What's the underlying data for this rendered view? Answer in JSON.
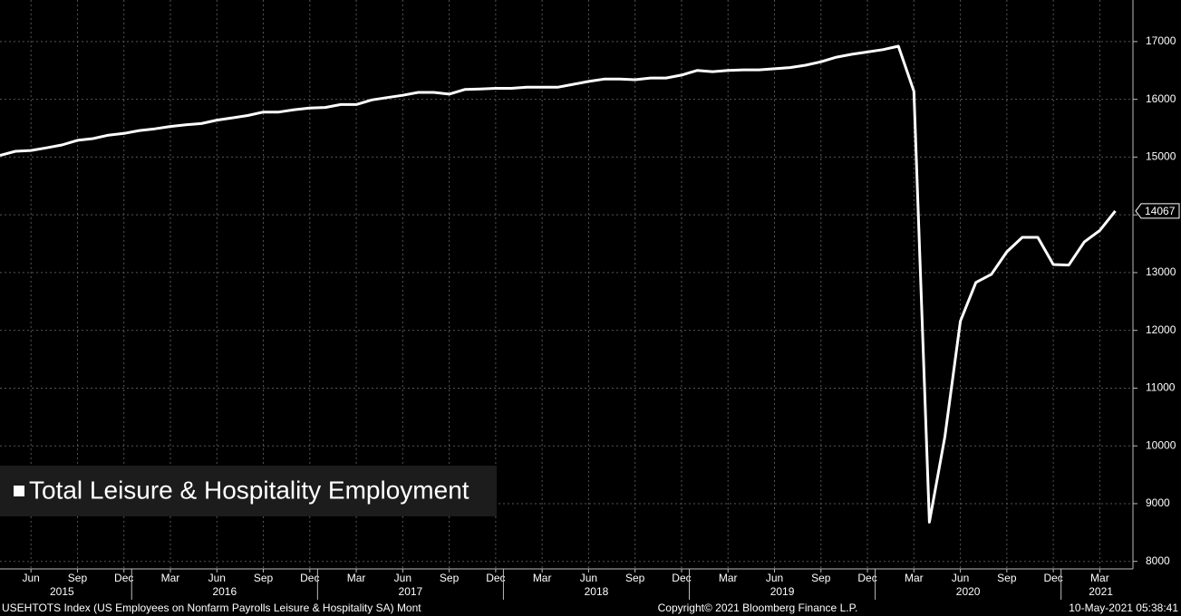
{
  "chart_data": {
    "type": "line",
    "legend": "bottom-left",
    "grid": true,
    "x": [
      "2015-04",
      "2015-05",
      "2015-06",
      "2015-07",
      "2015-08",
      "2015-09",
      "2015-10",
      "2015-11",
      "2015-12",
      "2016-01",
      "2016-02",
      "2016-03",
      "2016-04",
      "2016-05",
      "2016-06",
      "2016-07",
      "2016-08",
      "2016-09",
      "2016-10",
      "2016-11",
      "2016-12",
      "2017-01",
      "2017-02",
      "2017-03",
      "2017-04",
      "2017-05",
      "2017-06",
      "2017-07",
      "2017-08",
      "2017-09",
      "2017-10",
      "2017-11",
      "2017-12",
      "2018-01",
      "2018-02",
      "2018-03",
      "2018-04",
      "2018-05",
      "2018-06",
      "2018-07",
      "2018-08",
      "2018-09",
      "2018-10",
      "2018-11",
      "2018-12",
      "2019-01",
      "2019-02",
      "2019-03",
      "2019-04",
      "2019-05",
      "2019-06",
      "2019-07",
      "2019-08",
      "2019-09",
      "2019-10",
      "2019-11",
      "2019-12",
      "2020-01",
      "2020-02",
      "2020-03",
      "2020-04",
      "2020-05",
      "2020-06",
      "2020-07",
      "2020-08",
      "2020-09",
      "2020-10",
      "2020-11",
      "2020-12",
      "2021-01",
      "2021-02",
      "2021-03",
      "2021-04"
    ],
    "series": [
      {
        "name": "Total Leisure & Hospitality Employment",
        "color": "#ffffff",
        "values": [
          15030,
          15100,
          15115,
          15160,
          15210,
          15290,
          15320,
          15380,
          15410,
          15460,
          15490,
          15530,
          15560,
          15580,
          15640,
          15680,
          15720,
          15780,
          15780,
          15820,
          15850,
          15860,
          15910,
          15910,
          15990,
          16030,
          16070,
          16120,
          16120,
          16090,
          16170,
          16180,
          16190,
          16190,
          16210,
          16210,
          16210,
          16260,
          16310,
          16350,
          16350,
          16340,
          16370,
          16370,
          16420,
          16500,
          16480,
          16500,
          16510,
          16510,
          16530,
          16550,
          16590,
          16650,
          16730,
          16780,
          16820,
          16860,
          16920,
          16140,
          8680,
          10160,
          12160,
          12830,
          12970,
          13360,
          13610,
          13610,
          13140,
          13130,
          13530,
          13730,
          14067
        ]
      }
    ],
    "ylim": [
      7870,
      17720
    ],
    "yticks": [
      8000,
      9000,
      10000,
      11000,
      12000,
      13000,
      14000,
      15000,
      16000,
      17000
    ],
    "xticks": [
      {
        "value": "2015-06",
        "label": "Jun"
      },
      {
        "value": "2015-09",
        "label": "Sep"
      },
      {
        "value": "2015-12",
        "label": "Dec"
      },
      {
        "value": "2016-03",
        "label": "Mar"
      },
      {
        "value": "2016-06",
        "label": "Jun"
      },
      {
        "value": "2016-09",
        "label": "Sep"
      },
      {
        "value": "2016-12",
        "label": "Dec"
      },
      {
        "value": "2017-03",
        "label": "Mar"
      },
      {
        "value": "2017-06",
        "label": "Jun"
      },
      {
        "value": "2017-09",
        "label": "Sep"
      },
      {
        "value": "2017-12",
        "label": "Dec"
      },
      {
        "value": "2018-03",
        "label": "Mar"
      },
      {
        "value": "2018-06",
        "label": "Jun"
      },
      {
        "value": "2018-09",
        "label": "Sep"
      },
      {
        "value": "2018-12",
        "label": "Dec"
      },
      {
        "value": "2019-03",
        "label": "Mar"
      },
      {
        "value": "2019-06",
        "label": "Jun"
      },
      {
        "value": "2019-09",
        "label": "Sep"
      },
      {
        "value": "2019-12",
        "label": "Dec"
      },
      {
        "value": "2020-03",
        "label": "Mar"
      },
      {
        "value": "2020-06",
        "label": "Jun"
      },
      {
        "value": "2020-09",
        "label": "Sep"
      },
      {
        "value": "2020-12",
        "label": "Dec"
      },
      {
        "value": "2021-03",
        "label": "Mar"
      }
    ],
    "years": [
      "2015",
      "2016",
      "2017",
      "2018",
      "2019",
      "2020",
      "2021"
    ],
    "footer": {
      "left": "USEHTOTS Index (US Employees on Nonfarm Payrolls Leisure & Hospitality SA)  Mont",
      "center": "Copyright© 2021 Bloomberg Finance L.P.",
      "right": "10-May-2021 05:38:41"
    }
  }
}
